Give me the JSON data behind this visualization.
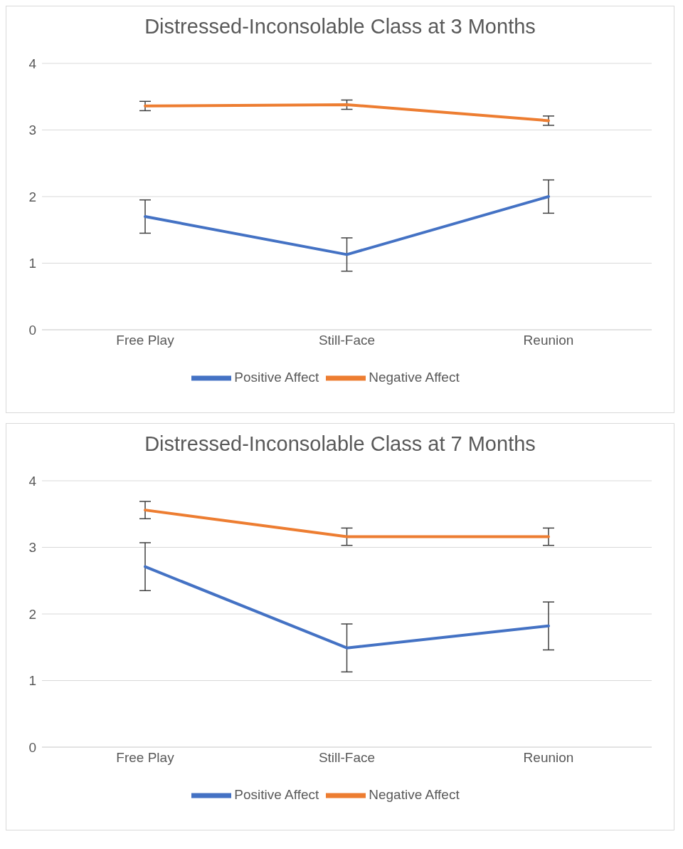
{
  "chart_data": [
    {
      "type": "line",
      "title": "Distressed-Inconsolable Class at 3 Months",
      "categories": [
        "Free Play",
        "Still-Face",
        "Reunion"
      ],
      "series": [
        {
          "name": "Positive Affect",
          "color": "#4472c4",
          "values": [
            1.7,
            1.13,
            2.0
          ],
          "errors": [
            0.25,
            0.25,
            0.25
          ]
        },
        {
          "name": "Negative Affect",
          "color": "#ed7d31",
          "values": [
            3.36,
            3.38,
            3.14
          ],
          "errors": [
            0.07,
            0.07,
            0.07
          ]
        }
      ],
      "ylim": [
        0,
        4
      ],
      "yticks": [
        0,
        1,
        2,
        3,
        4
      ],
      "grid": "y",
      "legend": "bottom",
      "marker": "none",
      "line_style": "solid"
    },
    {
      "type": "line",
      "title": "Distressed-Inconsolable Class at 7 Months",
      "categories": [
        "Free Play",
        "Still-Face",
        "Reunion"
      ],
      "series": [
        {
          "name": "Positive Affect",
          "color": "#4472c4",
          "values": [
            2.71,
            1.49,
            1.82
          ],
          "errors": [
            0.36,
            0.36,
            0.36
          ]
        },
        {
          "name": "Negative Affect",
          "color": "#ed7d31",
          "values": [
            3.56,
            3.16,
            3.16
          ],
          "errors": [
            0.13,
            0.13,
            0.13
          ]
        }
      ],
      "ylim": [
        0,
        4
      ],
      "yticks": [
        0,
        1,
        2,
        3,
        4
      ],
      "grid": "y",
      "legend": "bottom",
      "marker": "none",
      "line_style": "solid"
    }
  ]
}
